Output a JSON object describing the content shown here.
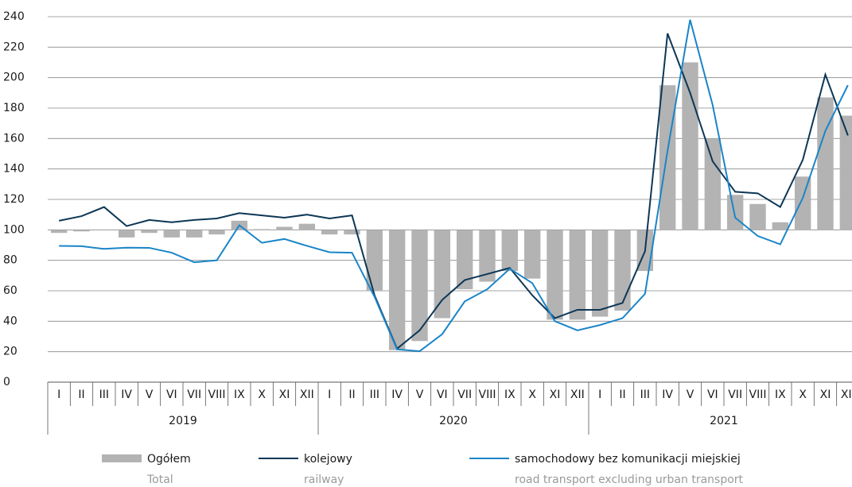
{
  "chart_data": {
    "type": "bar_line",
    "categories": [
      "I",
      "II",
      "III",
      "IV",
      "V",
      "VI",
      "VII",
      "VIII",
      "IX",
      "X",
      "XI",
      "XII",
      "I",
      "II",
      "III",
      "IV",
      "V",
      "VI",
      "VII",
      "VIII",
      "IX",
      "X",
      "XI",
      "XII",
      "I",
      "II",
      "III",
      "IV",
      "V",
      "VI",
      "VII",
      "VIII",
      "IX",
      "X",
      "XI",
      "XII"
    ],
    "years": [
      "2019",
      "2020",
      "2021"
    ],
    "ylim": [
      0,
      240
    ],
    "yticks": [
      0,
      20,
      40,
      60,
      80,
      100,
      120,
      140,
      160,
      180,
      200,
      220,
      240
    ],
    "grid": true,
    "baseline": 100,
    "series": [
      {
        "name": "Ogółem",
        "name_en": "Total",
        "type": "bar",
        "color": "#b3b3b3",
        "values": [
          98,
          99,
          100,
          95,
          98,
          95,
          95,
          97,
          106,
          100.5,
          102,
          104,
          97,
          97,
          60,
          21,
          27,
          42,
          61,
          66,
          73,
          68,
          41,
          41,
          43,
          47,
          73,
          195,
          210,
          160,
          123,
          117,
          105,
          135,
          187,
          175
        ]
      },
      {
        "name": "kolejowy",
        "name_en": "railway",
        "type": "line",
        "color": "#0d3756",
        "values": [
          106,
          109,
          115,
          102.5,
          106.5,
          105,
          106.5,
          107.5,
          111,
          109.5,
          108,
          110,
          107.5,
          109.5,
          57,
          22,
          34,
          54,
          67,
          71,
          75,
          57,
          42,
          47.5,
          47.5,
          52,
          86,
          229,
          190,
          145,
          125,
          124,
          115,
          146,
          202,
          162
        ]
      },
      {
        "name": "samochodowy bez komunikacji miejskiej",
        "name_en": "road transport excluding urban transport",
        "type": "line",
        "color": "#1a85c8",
        "values": [
          89.5,
          89.3,
          87.5,
          88.3,
          88.2,
          85,
          78.7,
          80,
          103,
          91.5,
          94,
          89.5,
          85.3,
          85,
          56,
          21.5,
          20.3,
          31.5,
          53,
          61,
          74.5,
          65,
          40,
          34,
          37.5,
          42,
          58,
          152,
          238,
          182,
          108,
          96,
          90.5,
          121,
          165,
          195
        ]
      }
    ]
  }
}
